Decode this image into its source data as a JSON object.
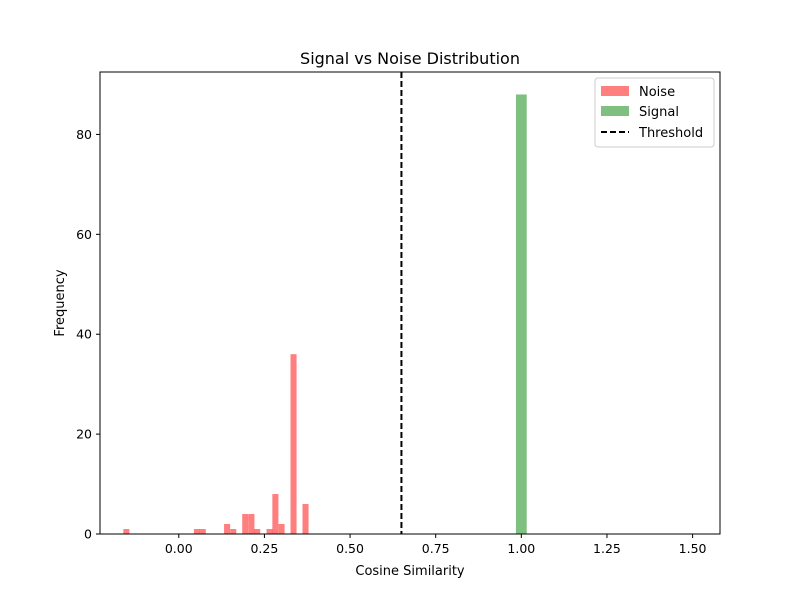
{
  "chart_data": {
    "type": "histogram",
    "title": "Signal vs Noise Distribution",
    "xlabel": "Cosine Similarity",
    "ylabel": "Frequency",
    "xlim": [
      -0.23,
      1.58
    ],
    "ylim": [
      0,
      92.5
    ],
    "x_ticks": [
      0.0,
      0.25,
      0.5,
      0.75,
      1.0,
      1.25,
      1.5
    ],
    "x_tick_labels": [
      "0.00",
      "0.25",
      "0.50",
      "0.75",
      "1.00",
      "1.25",
      "1.50"
    ],
    "y_ticks": [
      0,
      20,
      40,
      60,
      80
    ],
    "y_tick_labels": [
      "0",
      "20",
      "40",
      "60",
      "80"
    ],
    "grid": false,
    "legend_position": "top-right",
    "series": [
      {
        "name": "Noise",
        "color": "#ff0000",
        "alpha": 0.5,
        "bin_width": 0.0177,
        "bins": [
          {
            "x": -0.153,
            "count": 1
          },
          {
            "x": 0.053,
            "count": 1
          },
          {
            "x": 0.07,
            "count": 1
          },
          {
            "x": 0.141,
            "count": 2
          },
          {
            "x": 0.159,
            "count": 1
          },
          {
            "x": 0.194,
            "count": 4
          },
          {
            "x": 0.212,
            "count": 4
          },
          {
            "x": 0.229,
            "count": 1
          },
          {
            "x": 0.265,
            "count": 1
          },
          {
            "x": 0.282,
            "count": 8
          },
          {
            "x": 0.3,
            "count": 2
          },
          {
            "x": 0.335,
            "count": 36
          },
          {
            "x": 0.37,
            "count": 6
          }
        ]
      },
      {
        "name": "Signal",
        "color": "#008000",
        "alpha": 0.5,
        "bin_width": 0.0315,
        "bins": [
          {
            "x": 1.0,
            "count": 88
          }
        ]
      }
    ],
    "threshold": {
      "name": "Threshold",
      "x": 0.65,
      "color": "#000000",
      "style": "dashed"
    }
  }
}
